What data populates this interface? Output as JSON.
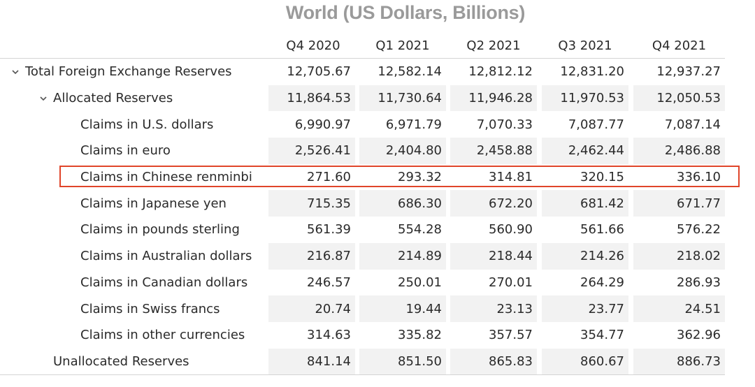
{
  "title": "World (US Dollars, Billions)",
  "columns": [
    "Q4 2020",
    "Q1 2021",
    "Q2 2021",
    "Q3 2021",
    "Q4 2021"
  ],
  "rows": [
    {
      "label": "Total Foreign Exchange Reserves",
      "values": [
        "12,705.67",
        "12,582.14",
        "12,812.12",
        "12,831.20",
        "12,937.27"
      ]
    },
    {
      "label": "Allocated Reserves",
      "values": [
        "11,864.53",
        "11,730.64",
        "11,946.28",
        "11,970.53",
        "12,050.53"
      ]
    },
    {
      "label": "Claims in U.S. dollars",
      "values": [
        "6,990.97",
        "6,971.79",
        "7,070.33",
        "7,087.77",
        "7,087.14"
      ]
    },
    {
      "label": "Claims in euro",
      "values": [
        "2,526.41",
        "2,404.80",
        "2,458.88",
        "2,462.44",
        "2,486.88"
      ]
    },
    {
      "label": "Claims in Chinese renminbi",
      "values": [
        "271.60",
        "293.32",
        "314.81",
        "320.15",
        "336.10"
      ]
    },
    {
      "label": "Claims in Japanese yen",
      "values": [
        "715.35",
        "686.30",
        "672.20",
        "681.42",
        "671.77"
      ]
    },
    {
      "label": "Claims in pounds sterling",
      "values": [
        "561.39",
        "554.28",
        "560.90",
        "561.66",
        "576.22"
      ]
    },
    {
      "label": "Claims in Australian dollars",
      "values": [
        "216.87",
        "214.89",
        "218.44",
        "214.26",
        "218.02"
      ]
    },
    {
      "label": "Claims in Canadian dollars",
      "values": [
        "246.57",
        "250.01",
        "270.01",
        "264.29",
        "286.93"
      ]
    },
    {
      "label": "Claims in Swiss francs",
      "values": [
        "20.74",
        "19.44",
        "23.13",
        "23.77",
        "24.51"
      ]
    },
    {
      "label": "Claims in other currencies",
      "values": [
        "314.63",
        "335.82",
        "357.57",
        "354.77",
        "362.96"
      ]
    },
    {
      "label": "Unallocated Reserves",
      "values": [
        "841.14",
        "851.50",
        "865.83",
        "860.67",
        "886.73"
      ]
    }
  ],
  "highlight_color": "#e0452a",
  "icons": {
    "expand": "chevron-down-icon"
  }
}
